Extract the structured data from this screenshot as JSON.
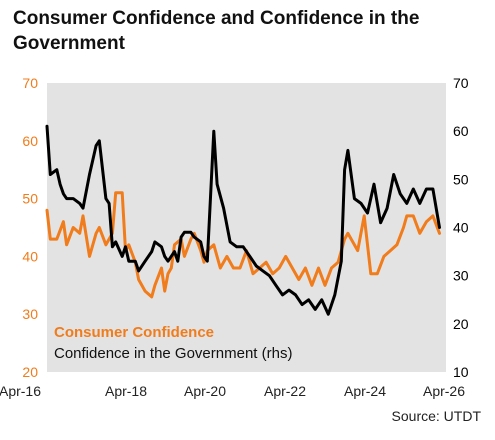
{
  "title": "Consumer Confidence and Confidence in the Government",
  "source": "Source: UTDT",
  "colors": {
    "consumer": "#F07C1C",
    "government": "#000000",
    "plot_bg": "#E3E3E3",
    "left_axis_text": "#F07C1C",
    "right_axis_text": "#000000"
  },
  "chart_data": {
    "type": "line",
    "title": "Consumer Confidence and Confidence in the Government",
    "x_ticks": [
      "Apr-16",
      "Apr-18",
      "Apr-20",
      "Apr-22",
      "Apr-24",
      "Apr-26"
    ],
    "x_range": [
      "2016-04",
      "2026-06"
    ],
    "y_left": {
      "range": [
        20,
        70
      ],
      "ticks": [
        "20",
        "30",
        "40",
        "50",
        "60",
        "70"
      ]
    },
    "y_right": {
      "range": [
        10,
        70
      ],
      "ticks": [
        "10",
        "20",
        "30",
        "40",
        "50",
        "60",
        "70"
      ]
    },
    "grid": false,
    "legend_position": "bottom-left inside plot",
    "series": [
      {
        "name": "Consumer Confidence",
        "axis": "left",
        "x": [
          "2016-04",
          "2016-05",
          "2016-07",
          "2016-09",
          "2016-10",
          "2016-12",
          "2017-02",
          "2017-03",
          "2017-05",
          "2017-07",
          "2017-08",
          "2017-10",
          "2017-11",
          "2017-12",
          "2018-01",
          "2018-03",
          "2018-04",
          "2018-05",
          "2018-07",
          "2018-08",
          "2018-10",
          "2018-12",
          "2019-01",
          "2019-03",
          "2019-04",
          "2019-05",
          "2019-06",
          "2019-07",
          "2019-09",
          "2019-10",
          "2019-12",
          "2020-01",
          "2020-03",
          "2020-04",
          "2020-05",
          "2020-07",
          "2020-09",
          "2020-11",
          "2021-01",
          "2021-03",
          "2021-05",
          "2021-07",
          "2021-09",
          "2021-11",
          "2022-01",
          "2022-03",
          "2022-05",
          "2022-07",
          "2022-09",
          "2022-11",
          "2023-01",
          "2023-03",
          "2023-05",
          "2023-07",
          "2023-09",
          "2023-11",
          "2023-12",
          "2024-01",
          "2024-03",
          "2024-05",
          "2024-07",
          "2024-09",
          "2024-11",
          "2025-01",
          "2025-03",
          "2025-05",
          "2025-06",
          "2025-08",
          "2025-10",
          "2025-12",
          "2026-02",
          "2026-04"
        ],
        "y": [
          48,
          43,
          43,
          46,
          42,
          45,
          44,
          47,
          40,
          44,
          45,
          42,
          43,
          44,
          51,
          51,
          41,
          42,
          39,
          36,
          34,
          33,
          35,
          38,
          34,
          37,
          38,
          42,
          43,
          40,
          43,
          44,
          41,
          39,
          41,
          42,
          38,
          40,
          38,
          38,
          41,
          37,
          38,
          39,
          37,
          38,
          40,
          38,
          36,
          38,
          35,
          38,
          35,
          38,
          39,
          43,
          44,
          43,
          41,
          47,
          37,
          37,
          40,
          41,
          42,
          45,
          47,
          47,
          44,
          46,
          47,
          44
        ]
      },
      {
        "name": "Confidence in the Government",
        "axis": "right",
        "x": [
          "2016-04",
          "2016-05",
          "2016-07",
          "2016-08",
          "2016-09",
          "2016-10",
          "2016-12",
          "2017-02",
          "2017-03",
          "2017-05",
          "2017-07",
          "2017-08",
          "2017-10",
          "2017-11",
          "2017-12",
          "2018-01",
          "2018-03",
          "2018-04",
          "2018-05",
          "2018-07",
          "2018-08",
          "2018-10",
          "2018-12",
          "2019-01",
          "2019-03",
          "2019-04",
          "2019-05",
          "2019-07",
          "2019-08",
          "2019-09",
          "2019-10",
          "2019-12",
          "2020-01",
          "2020-03",
          "2020-04",
          "2020-05",
          "2020-07",
          "2020-08",
          "2020-10",
          "2020-12",
          "2021-02",
          "2021-04",
          "2021-06",
          "2021-08",
          "2021-10",
          "2021-12",
          "2022-02",
          "2022-04",
          "2022-06",
          "2022-08",
          "2022-10",
          "2022-12",
          "2023-02",
          "2023-04",
          "2023-06",
          "2023-08",
          "2023-10",
          "2023-11",
          "2023-12",
          "2024-02",
          "2024-04",
          "2024-06",
          "2024-08",
          "2024-10",
          "2024-12",
          "2025-02",
          "2025-04",
          "2025-06",
          "2025-08",
          "2025-10",
          "2025-12",
          "2026-02",
          "2026-04"
        ],
        "y": [
          61,
          51,
          52,
          49,
          47,
          46,
          46,
          45,
          44,
          51,
          57,
          58,
          46,
          45,
          36,
          37,
          34,
          36,
          33,
          33,
          31,
          33,
          35,
          37,
          36,
          34,
          33,
          35,
          33,
          38,
          39,
          39,
          38,
          37,
          34,
          33,
          60,
          49,
          44,
          37,
          36,
          36,
          34,
          32,
          31,
          30,
          28,
          26,
          27,
          26,
          24,
          25,
          23,
          25,
          22,
          26,
          33,
          52,
          56,
          46,
          45,
          43,
          49,
          41,
          44,
          51,
          47,
          45,
          48,
          45,
          48,
          48,
          40
        ]
      }
    ]
  }
}
